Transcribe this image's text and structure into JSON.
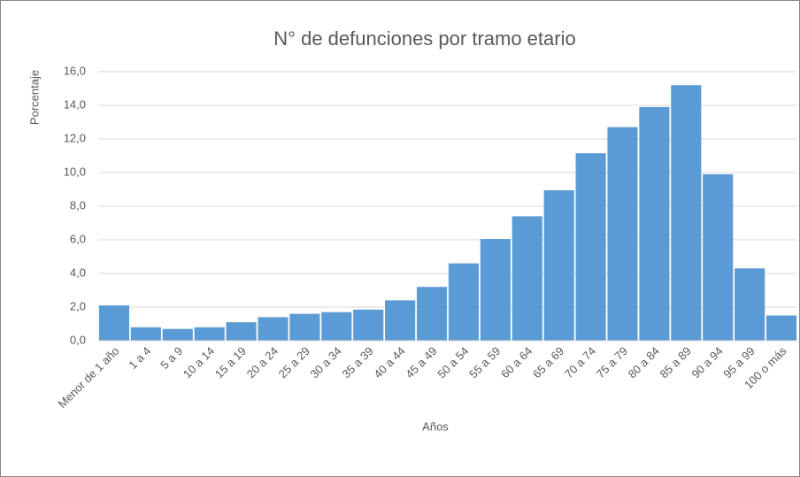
{
  "chart_data": {
    "type": "bar",
    "title": "N° de defunciones por tramo etario",
    "x_label": "Años",
    "y_label": "Porcentaje",
    "categories": [
      "Menor de 1 año",
      "1 a 4",
      "5 a 9",
      "10 a 14",
      "15 a 19",
      "20 a 24",
      "25 a 29",
      "30 a 34",
      "35 a 39",
      "40 a 44",
      "45 a 49",
      "50 a 54",
      "55 a 59",
      "60 a 64",
      "65 a 69",
      "70 a 74",
      "75 a 79",
      "80 a 84",
      "85 a 89",
      "90 a 94",
      "95 a 99",
      "100 o más"
    ],
    "values": [
      2.1,
      0.8,
      0.7,
      0.8,
      1.1,
      1.4,
      1.6,
      1.7,
      1.85,
      2.4,
      3.2,
      4.6,
      6.05,
      7.4,
      8.95,
      11.15,
      12.7,
      13.9,
      15.2,
      9.9,
      4.3,
      1.5
    ],
    "color": "#5b9bd5",
    "ylim": [
      0,
      16
    ],
    "yticks": [
      {
        "value": 0,
        "label": "0,0"
      },
      {
        "value": 2,
        "label": "2,0"
      },
      {
        "value": 4,
        "label": "4,0"
      },
      {
        "value": 6,
        "label": "6,0"
      },
      {
        "value": 8,
        "label": "8,0"
      },
      {
        "value": 10,
        "label": "10,0"
      },
      {
        "value": 12,
        "label": "12,0"
      },
      {
        "value": 14,
        "label": "14,0"
      },
      {
        "value": 16,
        "label": "16,0"
      }
    ],
    "grid": true
  }
}
